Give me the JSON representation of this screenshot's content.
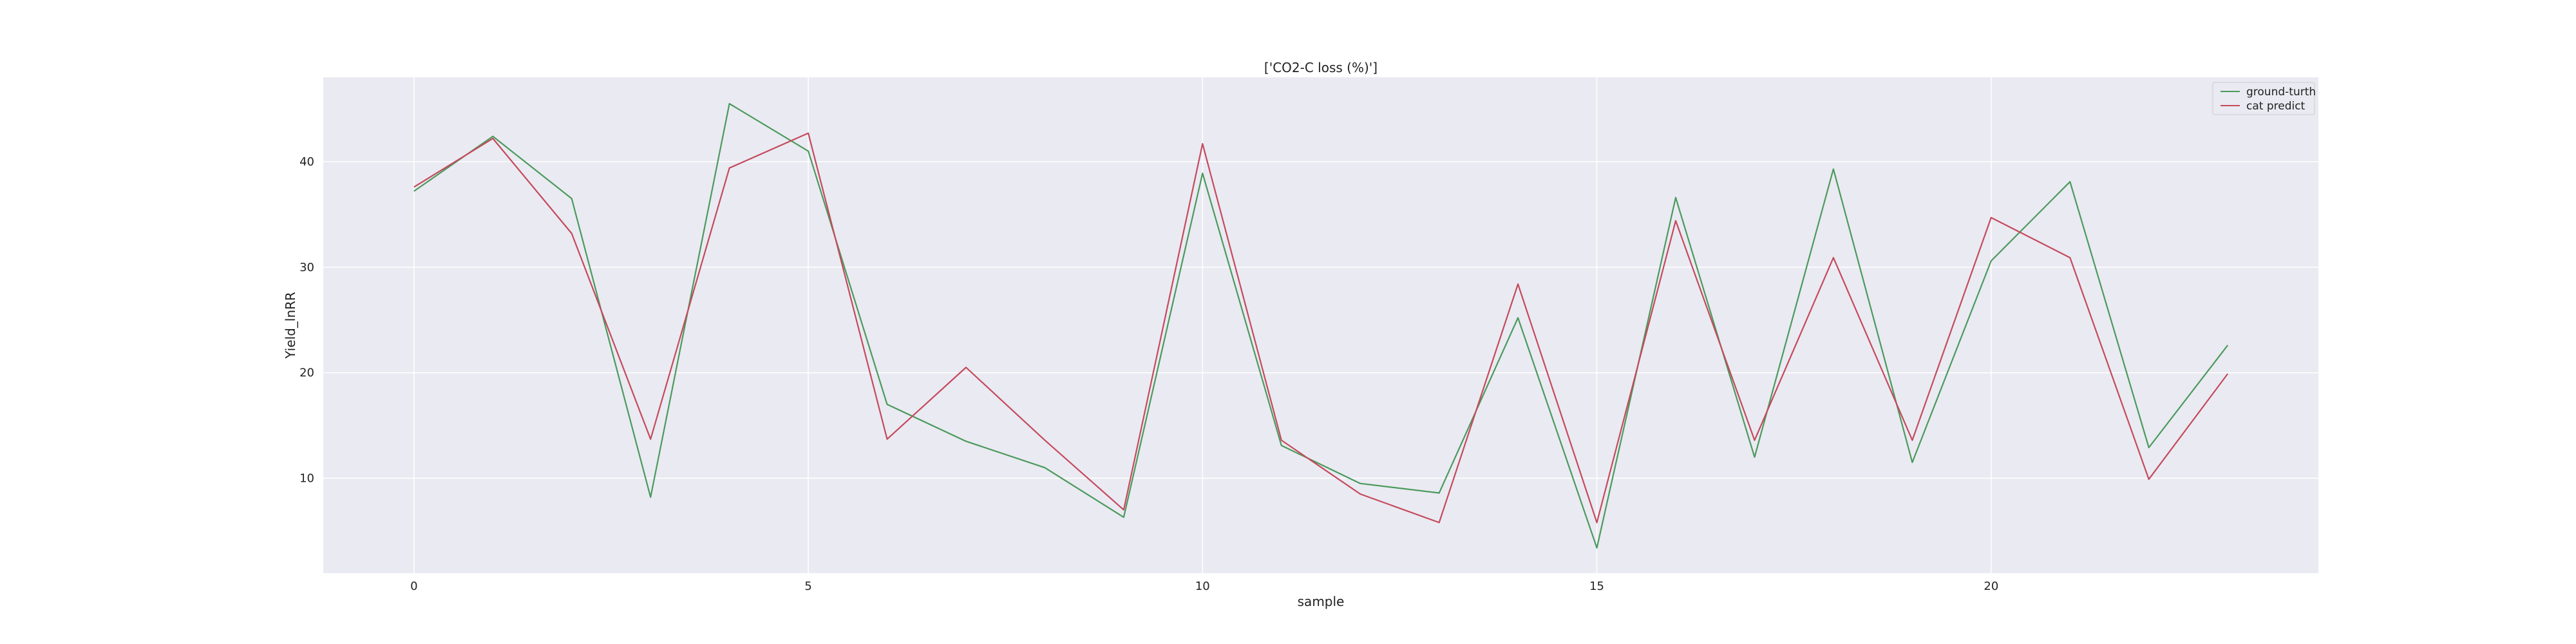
{
  "chart_data": {
    "type": "line",
    "title": "['CO2-C loss (%)']",
    "xlabel": "sample",
    "ylabel": "Yield_lnRR",
    "x": [
      0,
      1,
      2,
      3,
      4,
      5,
      6,
      7,
      8,
      9,
      10,
      11,
      12,
      13,
      14,
      15,
      16,
      17,
      18,
      19,
      20,
      21,
      22,
      23
    ],
    "xlim": [
      -1.15,
      24.15
    ],
    "ylim": [
      1.0,
      48.0
    ],
    "xticks": [
      0,
      5,
      10,
      15,
      20
    ],
    "yticks": [
      10,
      20,
      30,
      40
    ],
    "grid": true,
    "legend_position": "top-right",
    "series": [
      {
        "name": "ground-turth",
        "color": "#4a9a5c",
        "values": [
          37.2,
          42.4,
          36.5,
          8.2,
          45.5,
          41.0,
          17.0,
          13.5,
          11.0,
          6.3,
          38.9,
          13.1,
          9.5,
          8.6,
          25.2,
          3.4,
          36.6,
          12.0,
          39.3,
          11.5,
          30.6,
          38.1,
          12.9,
          22.6
        ]
      },
      {
        "name": "cat predict",
        "color": "#c44a5c",
        "values": [
          37.6,
          42.2,
          33.2,
          13.7,
          39.4,
          42.7,
          13.7,
          20.5,
          13.6,
          7.0,
          41.7,
          13.6,
          8.5,
          5.8,
          28.4,
          5.8,
          34.4,
          13.6,
          30.9,
          13.6,
          34.7,
          30.9,
          9.9,
          19.9
        ]
      }
    ]
  }
}
